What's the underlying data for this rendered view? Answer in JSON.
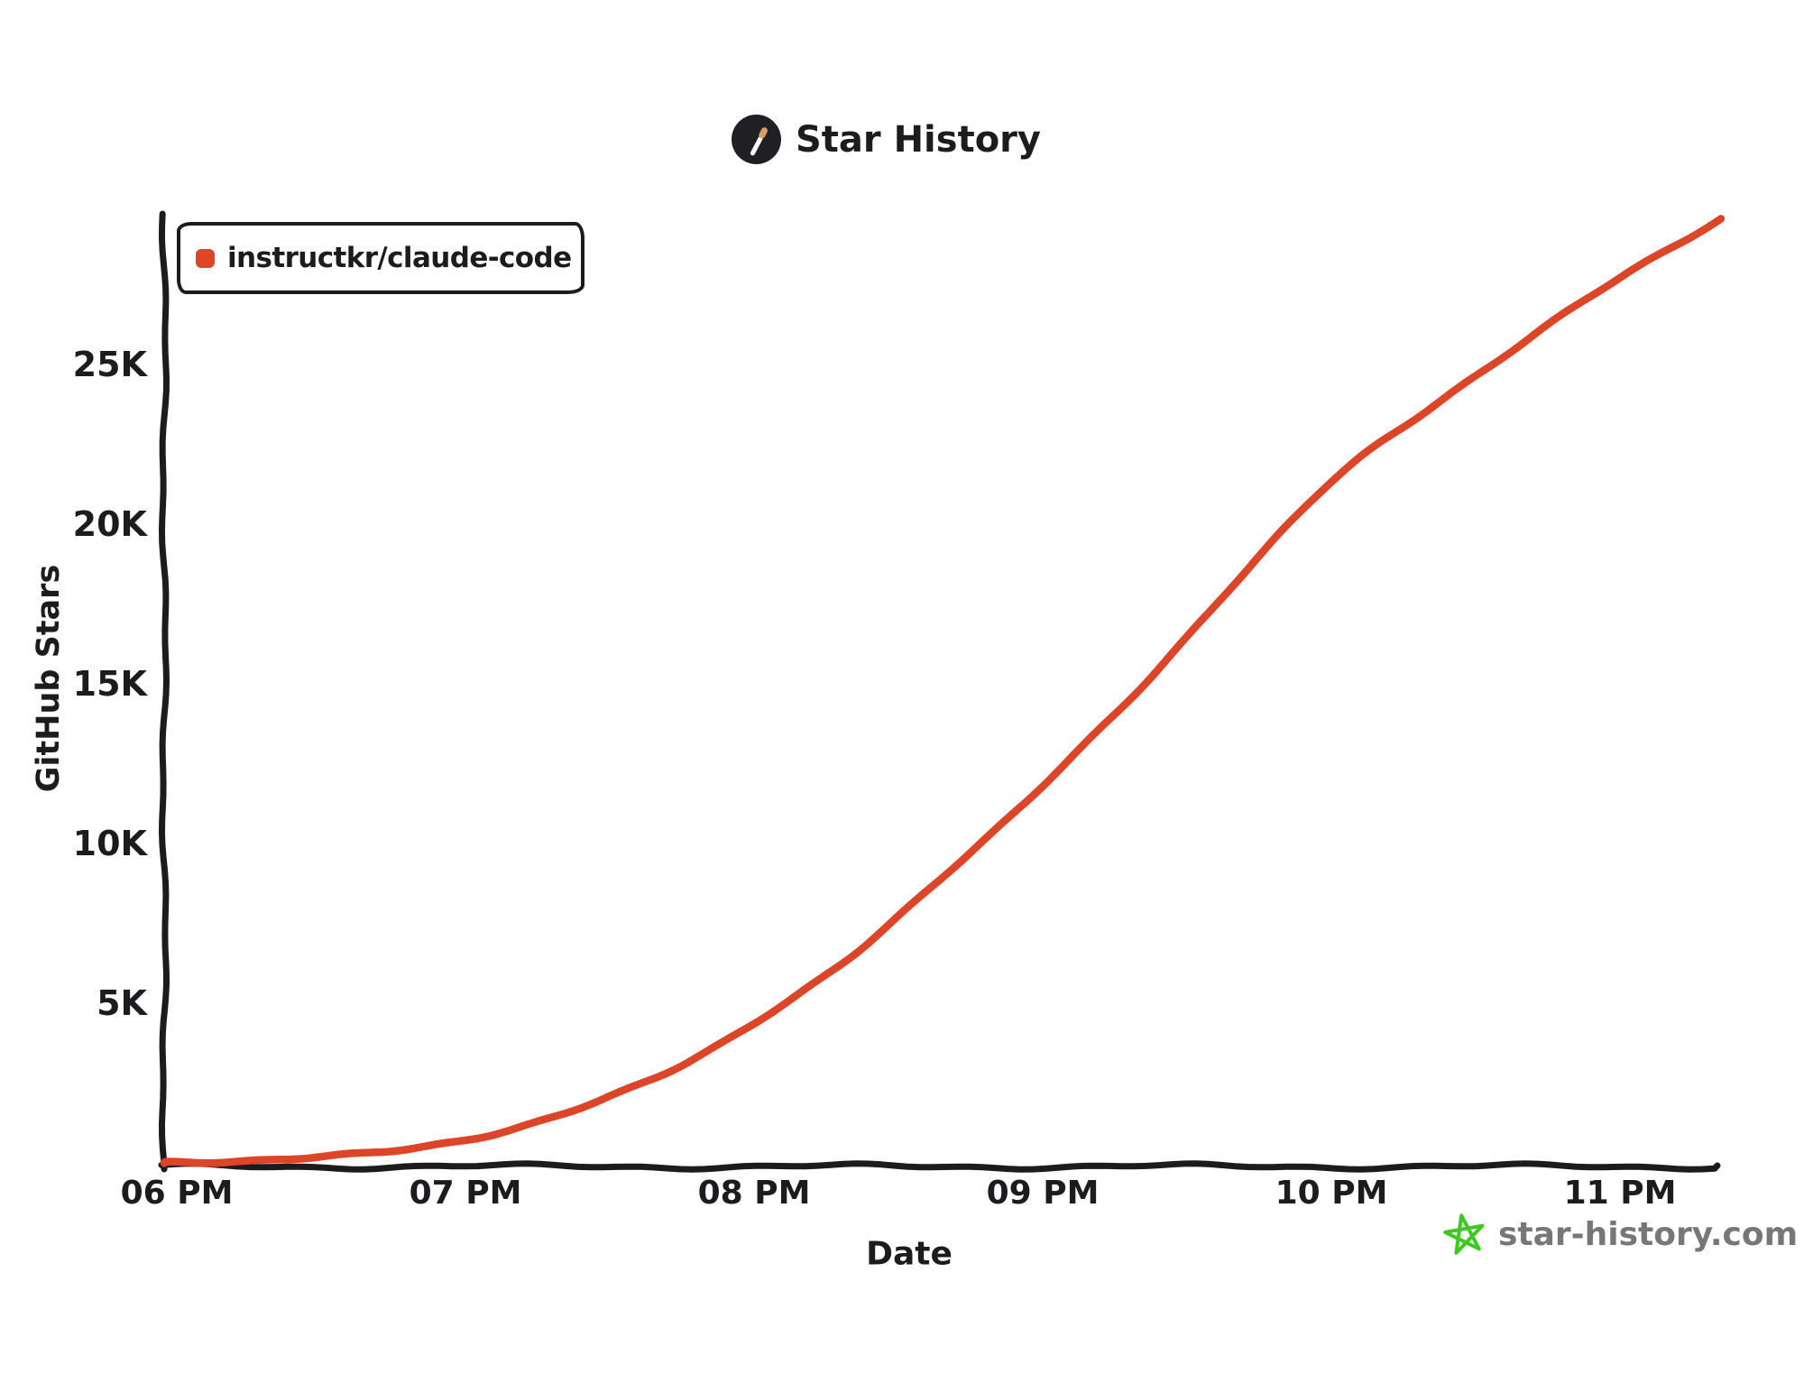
{
  "header": {
    "title": "Star History"
  },
  "legend": {
    "series_label": "instructkr/claude-code"
  },
  "axis": {
    "x_label": "Date",
    "y_label": "GitHub Stars"
  },
  "watermark": {
    "text": "star-history.com"
  },
  "colors": {
    "series": "#dd4528",
    "axis": "#1c1c1f",
    "ink": "#1c1c1f",
    "watermark_star": "#3dc921",
    "watermark_text": "#777777",
    "logo_bg": "#1f1f24",
    "logo_wand": "#ffffff",
    "logo_wand_tip": "#d99c63"
  },
  "chart_data": {
    "type": "line",
    "title": "Star History",
    "xlabel": "Date",
    "ylabel": "GitHub Stars",
    "legend_position": "top-left",
    "grid": false,
    "style": "hand-drawn-xkcd",
    "xticks": [
      {
        "label": "06 PM",
        "minutes": 0
      },
      {
        "label": "07 PM",
        "minutes": 60
      },
      {
        "label": "08 PM",
        "minutes": 120
      },
      {
        "label": "09 PM",
        "minutes": 180
      },
      {
        "label": "10 PM",
        "minutes": 240
      },
      {
        "label": "11 PM",
        "minutes": 300
      }
    ],
    "yticks": [
      {
        "label": "5K",
        "value": 5000
      },
      {
        "label": "10K",
        "value": 10000
      },
      {
        "label": "15K",
        "value": 15000
      },
      {
        "label": "20K",
        "value": 20000
      },
      {
        "label": "25K",
        "value": 25000
      }
    ],
    "ylim": [
      0,
      29700
    ],
    "xlim_minutes": [
      0,
      322
    ],
    "series": [
      {
        "name": "instructkr/claude-code",
        "color": "#dd4528",
        "points": [
          {
            "time": "06:00 PM",
            "minutes": 0,
            "stars": 30
          },
          {
            "time": "06:20 PM",
            "minutes": 20,
            "stars": 110
          },
          {
            "time": "06:40 PM",
            "minutes": 40,
            "stars": 280
          },
          {
            "time": "07:00 PM",
            "minutes": 60,
            "stars": 750
          },
          {
            "time": "07:20 PM",
            "minutes": 80,
            "stars": 1500
          },
          {
            "time": "07:40 PM",
            "minutes": 100,
            "stars": 2700
          },
          {
            "time": "08:00 PM",
            "minutes": 120,
            "stars": 4400
          },
          {
            "time": "08:20 PM",
            "minutes": 140,
            "stars": 6400
          },
          {
            "time": "08:40 PM",
            "minutes": 160,
            "stars": 9100
          },
          {
            "time": "09:00 PM",
            "minutes": 180,
            "stars": 11800
          },
          {
            "time": "09:20 PM",
            "minutes": 200,
            "stars": 14800
          },
          {
            "time": "09:40 PM",
            "minutes": 220,
            "stars": 18200
          },
          {
            "time": "10:00 PM",
            "minutes": 240,
            "stars": 21300
          },
          {
            "time": "10:20 PM",
            "minutes": 260,
            "stars": 23600
          },
          {
            "time": "10:40 PM",
            "minutes": 280,
            "stars": 25700
          },
          {
            "time": "11:00 PM",
            "minutes": 300,
            "stars": 27700
          },
          {
            "time": "11:21 PM",
            "minutes": 321,
            "stars": 29600
          }
        ]
      }
    ]
  }
}
